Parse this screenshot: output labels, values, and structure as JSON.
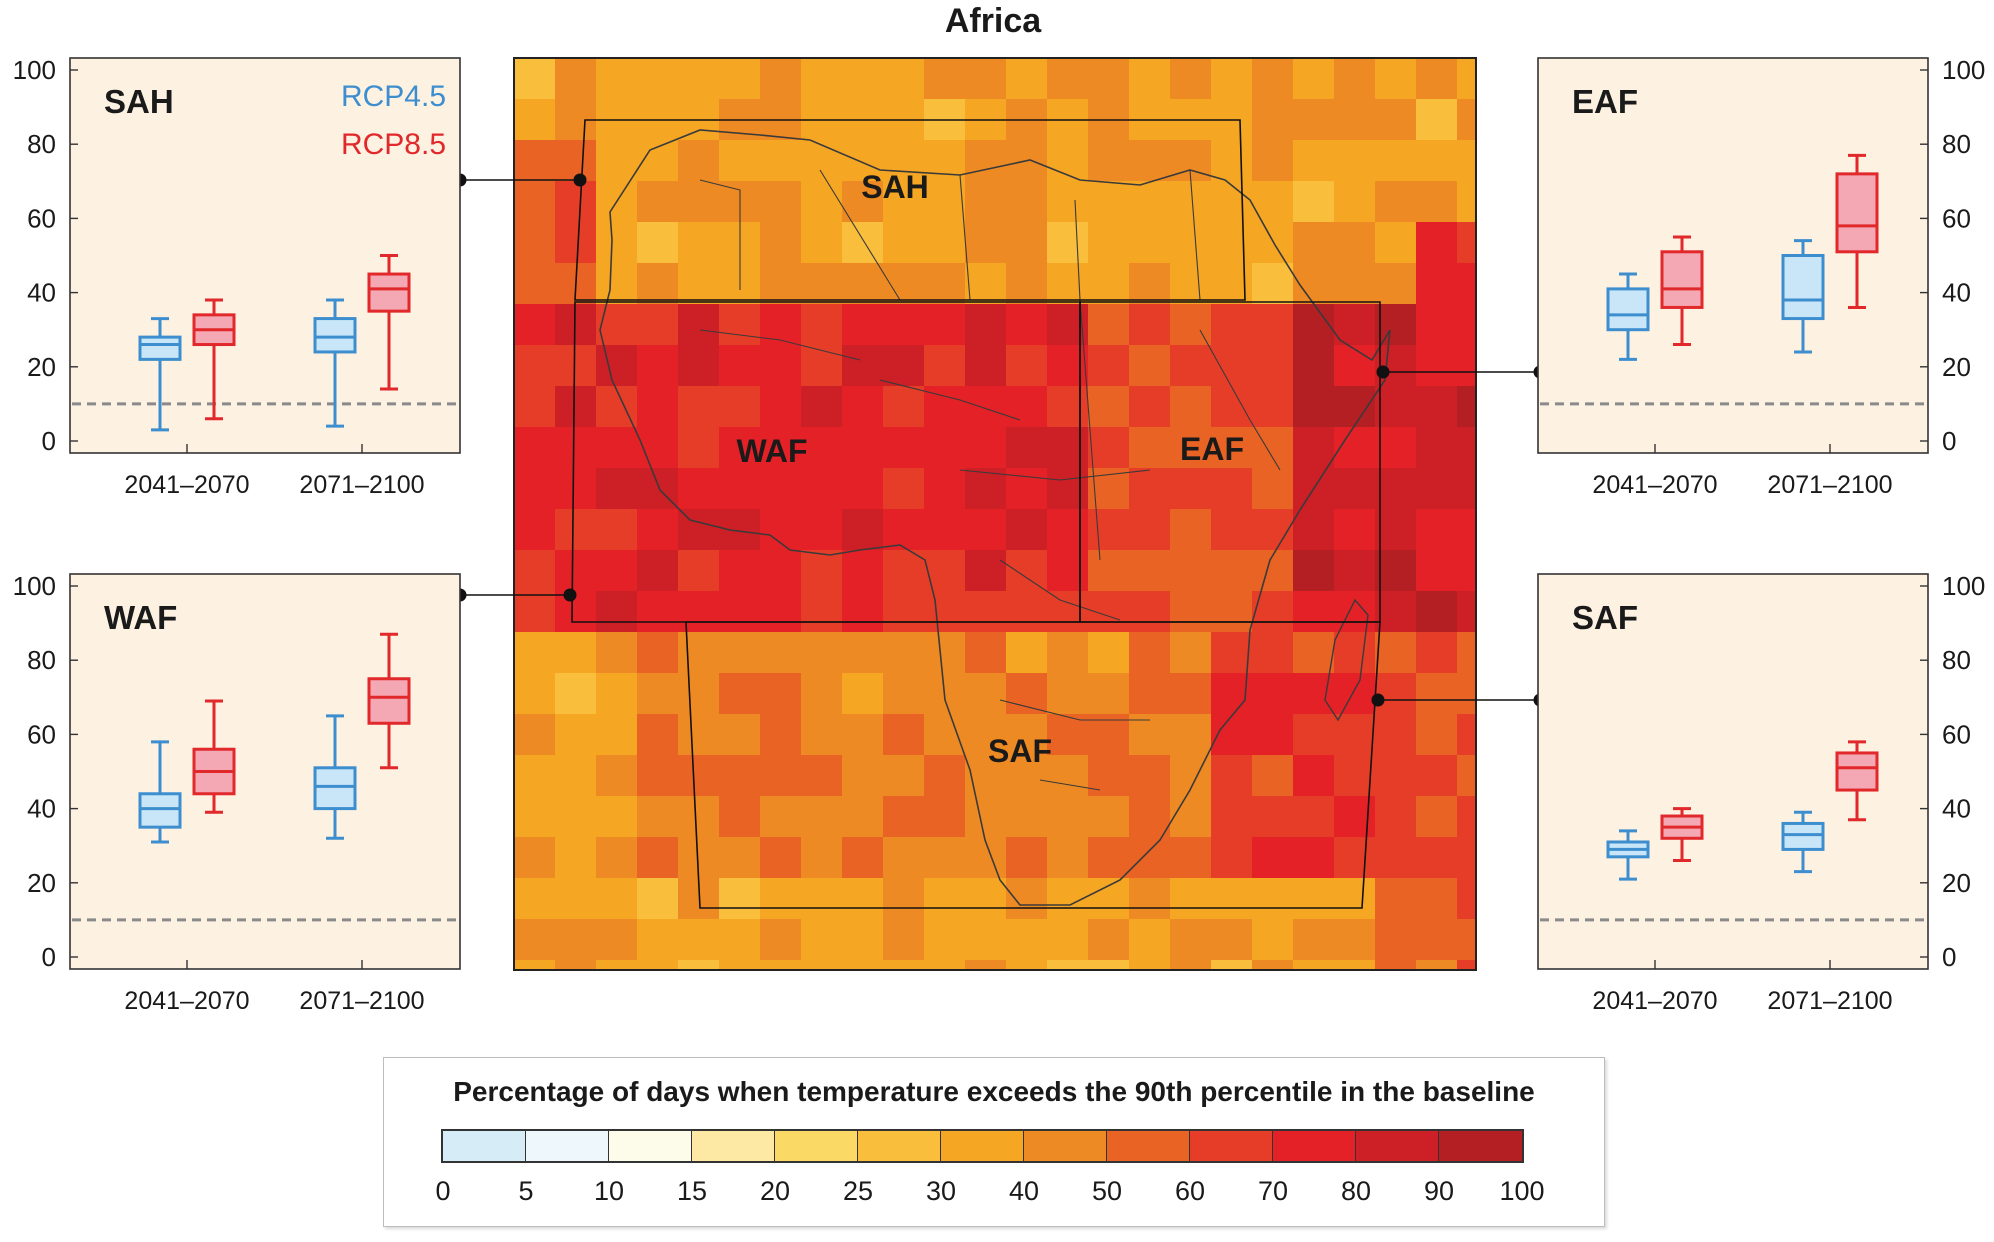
{
  "title": "Africa",
  "legend": {
    "title": "Percentage of days when temperature exceeds the 90th percentile in the baseline",
    "bins": [
      {
        "min": 0,
        "max": 5,
        "color": "#d6edf8"
      },
      {
        "min": 5,
        "max": 10,
        "color": "#eef7fc"
      },
      {
        "min": 10,
        "max": 15,
        "color": "#fdfbe9"
      },
      {
        "min": 15,
        "max": 20,
        "color": "#fde9a3"
      },
      {
        "min": 20,
        "max": 25,
        "color": "#fbd965"
      },
      {
        "min": 25,
        "max": 30,
        "color": "#f8be3c"
      },
      {
        "min": 30,
        "max": 40,
        "color": "#f5a623"
      },
      {
        "min": 40,
        "max": 50,
        "color": "#ee8a23"
      },
      {
        "min": 50,
        "max": 60,
        "color": "#e96424"
      },
      {
        "min": 60,
        "max": 70,
        "color": "#e63d28"
      },
      {
        "min": 70,
        "max": 80,
        "color": "#e42127"
      },
      {
        "min": 80,
        "max": 90,
        "color": "#cc1f26"
      },
      {
        "min": 90,
        "max": 100,
        "color": "#b41f24"
      }
    ],
    "ticks": [
      "0",
      "5",
      "10",
      "15",
      "20",
      "25",
      "30",
      "40",
      "50",
      "60",
      "70",
      "80",
      "90",
      "100"
    ]
  },
  "scenarios": [
    {
      "name": "RCP4.5",
      "color": "#3d8ecf",
      "fill": "#c8e6f7"
    },
    {
      "name": "RCP8.5",
      "color": "#e1282b",
      "fill": "#f4a8b4"
    }
  ],
  "baseline_value": 10,
  "map": {
    "region_labels": [
      "SAH",
      "WAF",
      "EAF",
      "SAF"
    ]
  },
  "chart_data": [
    {
      "type": "boxplot",
      "region": "SAH",
      "categories": [
        "2041–2070",
        "2071–2100"
      ],
      "ylim": [
        0,
        100
      ],
      "yticks": [
        0,
        20,
        40,
        60,
        80,
        100
      ],
      "y_axis_side": "left",
      "show_scenario_legend": true,
      "baseline": 10,
      "series": [
        {
          "name": "RCP4.5",
          "boxes": [
            {
              "whisker_low": 3,
              "q1": 22,
              "median": 26,
              "q3": 28,
              "whisker_high": 33
            },
            {
              "whisker_low": 4,
              "q1": 24,
              "median": 28,
              "q3": 33,
              "whisker_high": 38
            }
          ]
        },
        {
          "name": "RCP8.5",
          "boxes": [
            {
              "whisker_low": 6,
              "q1": 26,
              "median": 30,
              "q3": 34,
              "whisker_high": 38
            },
            {
              "whisker_low": 14,
              "q1": 35,
              "median": 41,
              "q3": 45,
              "whisker_high": 50
            }
          ]
        }
      ]
    },
    {
      "type": "boxplot",
      "region": "WAF",
      "categories": [
        "2041–2070",
        "2071–2100"
      ],
      "ylim": [
        0,
        100
      ],
      "yticks": [
        0,
        20,
        40,
        60,
        80,
        100
      ],
      "y_axis_side": "left",
      "show_scenario_legend": false,
      "baseline": 10,
      "series": [
        {
          "name": "RCP4.5",
          "boxes": [
            {
              "whisker_low": 31,
              "q1": 35,
              "median": 40,
              "q3": 44,
              "whisker_high": 58
            },
            {
              "whisker_low": 32,
              "q1": 40,
              "median": 46,
              "q3": 51,
              "whisker_high": 65
            }
          ]
        },
        {
          "name": "RCP8.5",
          "boxes": [
            {
              "whisker_low": 39,
              "q1": 44,
              "median": 50,
              "q3": 56,
              "whisker_high": 69
            },
            {
              "whisker_low": 51,
              "q1": 63,
              "median": 70,
              "q3": 75,
              "whisker_high": 87
            }
          ]
        }
      ]
    },
    {
      "type": "boxplot",
      "region": "EAF",
      "categories": [
        "2041–2070",
        "2071–2100"
      ],
      "ylim": [
        0,
        100
      ],
      "yticks": [
        0,
        20,
        40,
        60,
        80,
        100
      ],
      "y_axis_side": "right",
      "show_scenario_legend": false,
      "baseline": 10,
      "series": [
        {
          "name": "RCP4.5",
          "boxes": [
            {
              "whisker_low": 22,
              "q1": 30,
              "median": 34,
              "q3": 41,
              "whisker_high": 45
            },
            {
              "whisker_low": 24,
              "q1": 33,
              "median": 38,
              "q3": 50,
              "whisker_high": 54
            }
          ]
        },
        {
          "name": "RCP8.5",
          "boxes": [
            {
              "whisker_low": 26,
              "q1": 36,
              "median": 41,
              "q3": 51,
              "whisker_high": 55
            },
            {
              "whisker_low": 36,
              "q1": 51,
              "median": 58,
              "q3": 72,
              "whisker_high": 77
            }
          ]
        }
      ]
    },
    {
      "type": "boxplot",
      "region": "SAF",
      "categories": [
        "2041–2070",
        "2071–2100"
      ],
      "ylim": [
        0,
        100
      ],
      "yticks": [
        0,
        20,
        40,
        60,
        80,
        100
      ],
      "y_axis_side": "right",
      "show_scenario_legend": false,
      "baseline": 10,
      "series": [
        {
          "name": "RCP4.5",
          "boxes": [
            {
              "whisker_low": 21,
              "q1": 27,
              "median": 29,
              "q3": 31,
              "whisker_high": 34
            },
            {
              "whisker_low": 23,
              "q1": 29,
              "median": 33,
              "q3": 36,
              "whisker_high": 39
            }
          ]
        },
        {
          "name": "RCP8.5",
          "boxes": [
            {
              "whisker_low": 26,
              "q1": 32,
              "median": 35,
              "q3": 38,
              "whisker_high": 40
            },
            {
              "whisker_low": 37,
              "q1": 45,
              "median": 51,
              "q3": 55,
              "whisker_high": 58
            }
          ]
        }
      ]
    }
  ]
}
